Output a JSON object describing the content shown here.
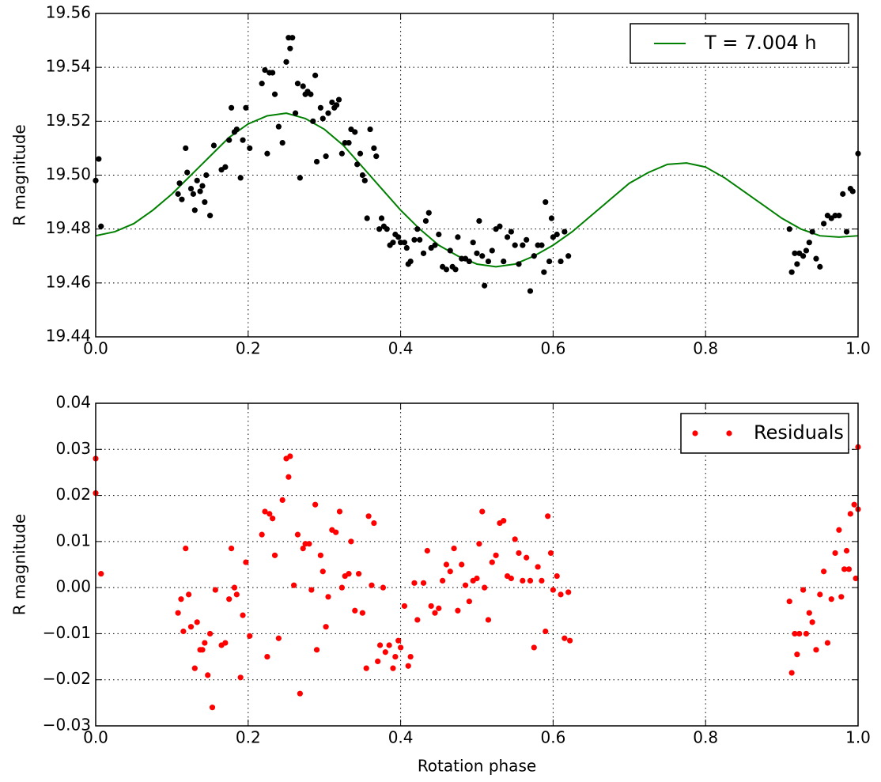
{
  "chart_data": [
    {
      "type": "scatter",
      "ylabel": "R magnitude",
      "xlim": [
        0,
        1
      ],
      "ylim": [
        19.44,
        19.56
      ],
      "xticks": [
        {
          "value": 0,
          "label": "0.0"
        },
        0.2,
        0.4,
        0.6,
        0.8,
        {
          "value": 1,
          "label": "1.0"
        }
      ],
      "yticks": [
        19.44,
        19.46,
        19.48,
        {
          "value": 19.5,
          "label": "19.50"
        },
        19.52,
        19.54,
        19.56
      ],
      "grid": true,
      "legend": "upper right",
      "series": [
        {
          "type": "line",
          "name": "T = 7.004 h",
          "color": "#008000",
          "x": [
            0,
            0.025,
            0.05,
            0.075,
            0.1,
            0.125,
            0.15,
            0.175,
            0.2,
            0.225,
            0.25,
            0.275,
            0.3,
            0.325,
            0.35,
            0.375,
            0.4,
            0.425,
            0.45,
            0.475,
            0.5,
            0.525,
            0.55,
            0.575,
            0.6,
            0.625,
            0.65,
            0.675,
            0.7,
            0.725,
            0.75,
            0.775,
            0.8,
            0.825,
            0.85,
            0.875,
            0.9,
            0.925,
            0.95,
            0.975,
            1.0
          ],
          "values": [
            19.4775,
            19.479,
            19.482,
            19.487,
            19.493,
            19.5,
            19.507,
            19.514,
            19.519,
            19.522,
            19.523,
            19.521,
            19.517,
            19.511,
            19.503,
            19.495,
            19.487,
            19.48,
            19.474,
            19.47,
            19.467,
            19.466,
            19.467,
            19.47,
            19.474,
            19.479,
            19.485,
            19.491,
            19.497,
            19.501,
            19.504,
            19.5045,
            19.503,
            19.499,
            19.494,
            19.489,
            19.484,
            19.48,
            19.4775,
            19.477,
            19.4775
          ]
        },
        {
          "type": "scatter",
          "color": "#000000",
          "x": [
            0.0,
            0.004,
            0.007,
            0.108,
            0.11,
            0.113,
            0.118,
            0.12,
            0.125,
            0.128,
            0.13,
            0.133,
            0.137,
            0.14,
            0.143,
            0.145,
            0.15,
            0.155,
            0.165,
            0.17,
            0.175,
            0.178,
            0.182,
            0.185,
            0.19,
            0.193,
            0.197,
            0.202,
            0.218,
            0.222,
            0.225,
            0.228,
            0.232,
            0.235,
            0.24,
            0.245,
            0.25,
            0.253,
            0.255,
            0.258,
            0.262,
            0.265,
            0.268,
            0.272,
            0.275,
            0.278,
            0.282,
            0.285,
            0.288,
            0.29,
            0.295,
            0.298,
            0.302,
            0.305,
            0.31,
            0.313,
            0.316,
            0.319,
            0.323,
            0.327,
            0.332,
            0.335,
            0.34,
            0.343,
            0.347,
            0.35,
            0.353,
            0.356,
            0.36,
            0.365,
            0.368,
            0.372,
            0.375,
            0.378,
            0.382,
            0.386,
            0.39,
            0.393,
            0.397,
            0.4,
            0.405,
            0.408,
            0.41,
            0.413,
            0.418,
            0.422,
            0.425,
            0.43,
            0.433,
            0.437,
            0.44,
            0.445,
            0.45,
            0.455,
            0.46,
            0.465,
            0.468,
            0.472,
            0.475,
            0.48,
            0.485,
            0.49,
            0.495,
            0.5,
            0.503,
            0.507,
            0.51,
            0.515,
            0.52,
            0.525,
            0.53,
            0.535,
            0.54,
            0.545,
            0.55,
            0.555,
            0.56,
            0.565,
            0.57,
            0.575,
            0.58,
            0.585,
            0.588,
            0.59,
            0.595,
            0.598,
            0.6,
            0.605,
            0.61,
            0.615,
            0.62,
            0.91,
            0.913,
            0.917,
            0.92,
            0.923,
            0.928,
            0.932,
            0.936,
            0.94,
            0.945,
            0.95,
            0.955,
            0.96,
            0.965,
            0.97,
            0.975,
            0.98,
            0.985,
            0.99,
            0.993,
            1.0
          ],
          "values": [
            19.498,
            19.506,
            19.481,
            19.493,
            19.497,
            19.491,
            19.51,
            19.501,
            19.495,
            19.493,
            19.487,
            19.498,
            19.494,
            19.496,
            19.49,
            19.5,
            19.485,
            19.511,
            19.502,
            19.503,
            19.513,
            19.525,
            19.516,
            19.517,
            19.499,
            19.513,
            19.525,
            19.51,
            19.534,
            19.539,
            19.508,
            19.538,
            19.538,
            19.53,
            19.518,
            19.512,
            19.542,
            19.551,
            19.547,
            19.551,
            19.523,
            19.534,
            19.499,
            19.533,
            19.53,
            19.531,
            19.53,
            19.52,
            19.537,
            19.505,
            19.525,
            19.521,
            19.507,
            19.523,
            19.527,
            19.525,
            19.526,
            19.528,
            19.508,
            19.512,
            19.512,
            19.517,
            19.516,
            19.504,
            19.508,
            19.5,
            19.498,
            19.484,
            19.517,
            19.51,
            19.507,
            19.48,
            19.484,
            19.481,
            19.48,
            19.474,
            19.475,
            19.478,
            19.477,
            19.475,
            19.475,
            19.473,
            19.467,
            19.468,
            19.476,
            19.48,
            19.476,
            19.471,
            19.483,
            19.486,
            19.473,
            19.474,
            19.478,
            19.466,
            19.465,
            19.472,
            19.466,
            19.465,
            19.477,
            19.469,
            19.469,
            19.468,
            19.475,
            19.471,
            19.483,
            19.47,
            19.459,
            19.468,
            19.472,
            19.48,
            19.481,
            19.468,
            19.477,
            19.479,
            19.474,
            19.467,
            19.474,
            19.476,
            19.457,
            19.47,
            19.474,
            19.474,
            19.464,
            19.49,
            19.468,
            19.484,
            19.477,
            19.478,
            19.468,
            19.479,
            19.47,
            19.48,
            19.464,
            19.471,
            19.467,
            19.471,
            19.47,
            19.472,
            19.475,
            19.479,
            19.469,
            19.466,
            19.482,
            19.485,
            19.484,
            19.485,
            19.485,
            19.493,
            19.479,
            19.495,
            19.494,
            19.508
          ]
        }
      ]
    },
    {
      "type": "scatter",
      "ylabel": "R magnitude",
      "xlabel": "Rotation phase",
      "xlim": [
        0,
        1
      ],
      "ylim": [
        -0.03,
        0.04
      ],
      "xticks": [
        {
          "value": 0,
          "label": "0.0"
        },
        0.2,
        0.4,
        0.6,
        0.8,
        {
          "value": 1,
          "label": "1.0"
        }
      ],
      "yticks": [
        {
          "value": -0.03,
          "label": "−0.03"
        },
        {
          "value": -0.02,
          "label": "−0.02"
        },
        {
          "value": -0.01,
          "label": "−0.01"
        },
        {
          "value": 0,
          "label": "0.00"
        },
        0.01,
        0.02,
        0.03,
        0.04
      ],
      "grid": true,
      "legend": "upper right",
      "series": [
        {
          "type": "scatter",
          "name": "Residuals",
          "color": "#ff0000",
          "x": [
            0.0,
            0.0,
            0.007,
            0.108,
            0.112,
            0.115,
            0.118,
            0.122,
            0.125,
            0.13,
            0.133,
            0.137,
            0.14,
            0.143,
            0.147,
            0.15,
            0.153,
            0.157,
            0.165,
            0.17,
            0.175,
            0.178,
            0.182,
            0.185,
            0.19,
            0.193,
            0.197,
            0.202,
            0.218,
            0.222,
            0.225,
            0.228,
            0.232,
            0.235,
            0.24,
            0.245,
            0.25,
            0.253,
            0.255,
            0.26,
            0.265,
            0.268,
            0.272,
            0.275,
            0.28,
            0.283,
            0.288,
            0.29,
            0.295,
            0.298,
            0.302,
            0.305,
            0.31,
            0.315,
            0.32,
            0.323,
            0.327,
            0.332,
            0.335,
            0.34,
            0.345,
            0.35,
            0.355,
            0.358,
            0.362,
            0.365,
            0.37,
            0.373,
            0.377,
            0.38,
            0.385,
            0.39,
            0.393,
            0.397,
            0.4,
            0.405,
            0.41,
            0.413,
            0.418,
            0.422,
            0.43,
            0.435,
            0.44,
            0.445,
            0.45,
            0.455,
            0.46,
            0.465,
            0.47,
            0.475,
            0.48,
            0.485,
            0.49,
            0.495,
            0.5,
            0.503,
            0.507,
            0.51,
            0.515,
            0.52,
            0.525,
            0.53,
            0.535,
            0.54,
            0.545,
            0.55,
            0.555,
            0.56,
            0.565,
            0.57,
            0.575,
            0.58,
            0.585,
            0.59,
            0.593,
            0.597,
            0.6,
            0.605,
            0.61,
            0.615,
            0.62,
            0.622,
            0.91,
            0.913,
            0.917,
            0.92,
            0.923,
            0.928,
            0.932,
            0.936,
            0.94,
            0.945,
            0.95,
            0.955,
            0.96,
            0.965,
            0.97,
            0.975,
            0.978,
            0.982,
            0.985,
            0.988,
            0.99,
            0.995,
            0.997,
            1.0,
            1.0
          ],
          "values": [
            0.028,
            0.0205,
            0.003,
            -0.0055,
            -0.0025,
            -0.0095,
            0.0085,
            -0.0015,
            -0.0085,
            -0.0175,
            -0.0075,
            -0.0135,
            -0.0135,
            -0.012,
            -0.019,
            -0.01,
            -0.026,
            -0.0005,
            -0.0125,
            -0.012,
            -0.0025,
            0.0085,
            0,
            -0.0015,
            -0.0195,
            -0.006,
            0.0055,
            -0.0105,
            0.0115,
            0.0165,
            -0.015,
            0.016,
            0.015,
            0.007,
            -0.011,
            0.019,
            0.028,
            0.024,
            0.0285,
            0.0005,
            0.0115,
            -0.023,
            0.0085,
            0.0095,
            0.0095,
            -0.0005,
            0.018,
            -0.0135,
            0.007,
            0.0035,
            -0.0085,
            -0.002,
            0.0125,
            0.012,
            0.0165,
            0,
            0.0025,
            0.003,
            0.01,
            -0.005,
            0.003,
            -0.0055,
            -0.0175,
            0.0155,
            0.0005,
            0.014,
            -0.016,
            -0.0125,
            0,
            -0.014,
            -0.0125,
            -0.0175,
            -0.015,
            -0.0115,
            -0.013,
            -0.004,
            -0.017,
            -0.015,
            0.001,
            -0.007,
            0.001,
            0.008,
            -0.004,
            -0.0055,
            -0.0045,
            0.0015,
            0.005,
            0.0035,
            0.0085,
            -0.005,
            0.005,
            0.0005,
            -0.003,
            0.0015,
            0.002,
            0.0095,
            0.0165,
            0,
            -0.007,
            0.0055,
            0.007,
            0.014,
            0.0145,
            0.0025,
            0.002,
            0.0105,
            0.0075,
            0.0015,
            0.0065,
            0.0015,
            -0.013,
            0.0045,
            0.0015,
            -0.0095,
            0.0155,
            0.0075,
            -0.0005,
            0.0025,
            -0.0015,
            -0.011,
            -0.001,
            -0.0115,
            -0.003,
            -0.0185,
            -0.01,
            -0.0145,
            -0.01,
            -0.0005,
            -0.01,
            -0.0055,
            -0.0075,
            -0.0135,
            -0.0015,
            0.0035,
            -0.012,
            -0.0025,
            0.0075,
            0.0125,
            -0.002,
            0.004,
            0.008,
            0.004,
            0.016,
            0.018,
            0.002,
            0.017,
            0.0305
          ]
        }
      ]
    }
  ]
}
